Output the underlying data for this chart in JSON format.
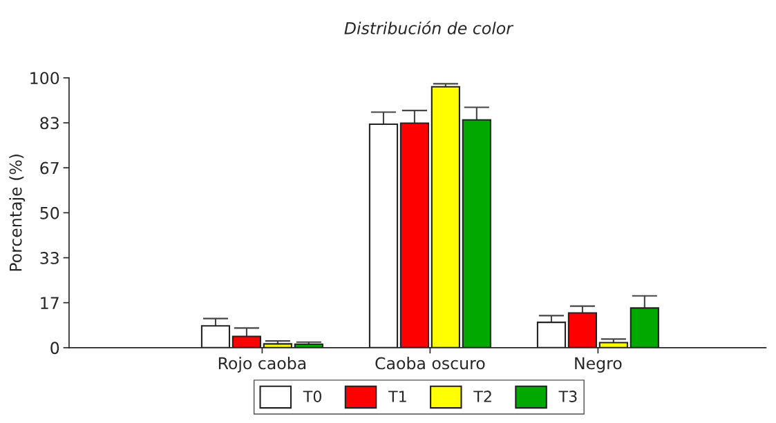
{
  "chart_data": {
    "type": "bar",
    "title": "Distribución de color",
    "ylabel": "Porcentaje (%)",
    "categories": [
      "Rojo caoba",
      "Caoba oscuro",
      "Negro"
    ],
    "series": [
      {
        "name": "T0",
        "color": "#ffffff",
        "values": [
          8.1,
          82.8,
          9.4
        ],
        "errors": [
          [
            8.1,
            10.8
          ],
          [
            82.8,
            87.3
          ],
          [
            9.4,
            11.9
          ]
        ]
      },
      {
        "name": "T1",
        "color": "#ff0000",
        "values": [
          4.2,
          83.2,
          12.9
        ],
        "errors": [
          [
            4.2,
            7.3
          ],
          [
            83.2,
            87.9
          ],
          [
            12.9,
            15.4
          ]
        ]
      },
      {
        "name": "T2",
        "color": "#ffff00",
        "values": [
          1.4,
          96.7,
          1.9
        ],
        "errors": [
          [
            1.4,
            2.5
          ],
          [
            96.7,
            97.8
          ],
          [
            1.9,
            3.2
          ]
        ]
      },
      {
        "name": "T3",
        "color": "#00a800",
        "values": [
          1.3,
          84.4,
          14.7
        ],
        "errors": [
          [
            1.3,
            2.1
          ],
          [
            84.4,
            89.1
          ],
          [
            14.7,
            19.2
          ]
        ]
      }
    ],
    "ylim": [
      0,
      100
    ],
    "yticks": [
      0,
      {
        "value": 16.67,
        "label": "17"
      },
      {
        "value": 33.33,
        "label": "33"
      },
      50,
      {
        "value": 66.67,
        "label": "67"
      },
      {
        "value": 83.33,
        "label": "83"
      },
      100
    ],
    "grid": false,
    "legend": "bottom"
  }
}
